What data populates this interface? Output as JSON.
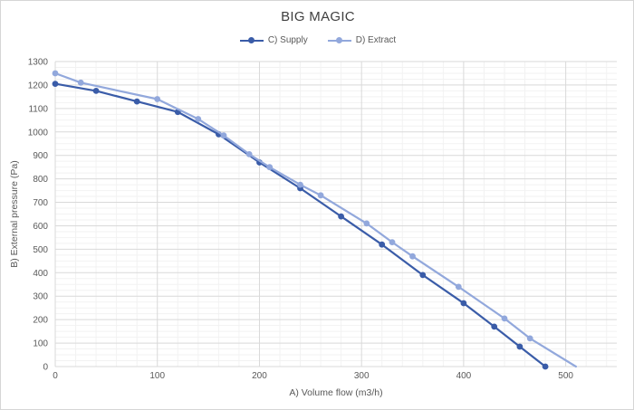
{
  "chart": {
    "title": "BIG MAGIC",
    "background": "#ffffff",
    "border_color": "#d6d6d6",
    "title_color": "#3f3f3f",
    "axis_text_color": "#595959",
    "major_grid_color": "#d9d9d9",
    "minor_grid_color": "#f2f2f2"
  },
  "chart_data": {
    "type": "line",
    "title": "BIG MAGIC",
    "xlabel": "A) Volume flow (m3/h)",
    "ylabel": "B) External pressure (Pa)",
    "xlim": [
      0,
      550
    ],
    "ylim": [
      0,
      1300
    ],
    "x_ticks": [
      0,
      100,
      200,
      300,
      400,
      500
    ],
    "y_ticks": [
      0,
      100,
      200,
      300,
      400,
      500,
      600,
      700,
      800,
      900,
      1000,
      1100,
      1200,
      1300
    ],
    "minor_x_step": 20,
    "minor_y_step": 25,
    "grid": true,
    "legend_position": "top",
    "series": [
      {
        "name": "C) Supply",
        "color": "#3a5ca8",
        "points": [
          [
            0,
            1205
          ],
          [
            40,
            1175
          ],
          [
            80,
            1130
          ],
          [
            120,
            1085
          ],
          [
            160,
            990
          ],
          [
            200,
            870
          ],
          [
            240,
            760
          ],
          [
            280,
            640
          ],
          [
            320,
            520
          ],
          [
            360,
            390
          ],
          [
            400,
            270
          ],
          [
            430,
            170
          ],
          [
            455,
            85
          ],
          [
            480,
            0
          ]
        ],
        "last_point_marker": true
      },
      {
        "name": "D) Extract",
        "color": "#92a8dc",
        "points": [
          [
            0,
            1250
          ],
          [
            25,
            1210
          ],
          [
            100,
            1140
          ],
          [
            140,
            1055
          ],
          [
            165,
            985
          ],
          [
            190,
            905
          ],
          [
            210,
            850
          ],
          [
            240,
            775
          ],
          [
            260,
            730
          ],
          [
            305,
            610
          ],
          [
            330,
            530
          ],
          [
            350,
            470
          ],
          [
            395,
            340
          ],
          [
            440,
            205
          ],
          [
            465,
            120
          ],
          [
            510,
            0
          ]
        ],
        "last_point_marker": false
      }
    ]
  }
}
